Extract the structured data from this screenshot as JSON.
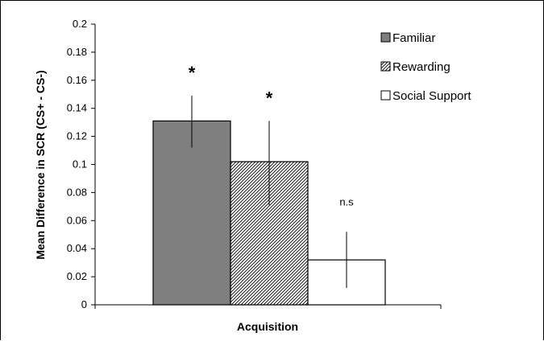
{
  "chart_data": {
    "type": "bar",
    "categories": [
      "Acquisition"
    ],
    "series": [
      {
        "name": "Familiar",
        "values": [
          0.131
        ],
        "error_low": [
          0.112
        ],
        "error_high": [
          0.149
        ],
        "fill": "gray",
        "annotation": "*"
      },
      {
        "name": "Rewarding",
        "values": [
          0.102
        ],
        "error_low": [
          0.071
        ],
        "error_high": [
          0.131
        ],
        "fill": "hatch",
        "annotation": "*"
      },
      {
        "name": "Social Support",
        "values": [
          0.032
        ],
        "error_low": [
          0.012
        ],
        "error_high": [
          0.052
        ],
        "fill": "white",
        "annotation": "n.s"
      }
    ],
    "xlabel": "Acquisition",
    "ylabel": "Mean Difference in SCR (CS+ - CS-)",
    "ylim": [
      0,
      0.2
    ],
    "yticks": [
      "0",
      "0.02",
      "0.04",
      "0.06",
      "0.08",
      "0.1",
      "0.12",
      "0.14",
      "0.16",
      "0.18",
      "0.2"
    ],
    "grid": false,
    "legend_position": "top-right",
    "colors": {
      "familiar": "#7f7f7f",
      "rewarding_hatch": "#000000",
      "social_support": "#ffffff",
      "stroke": "#000000"
    }
  }
}
